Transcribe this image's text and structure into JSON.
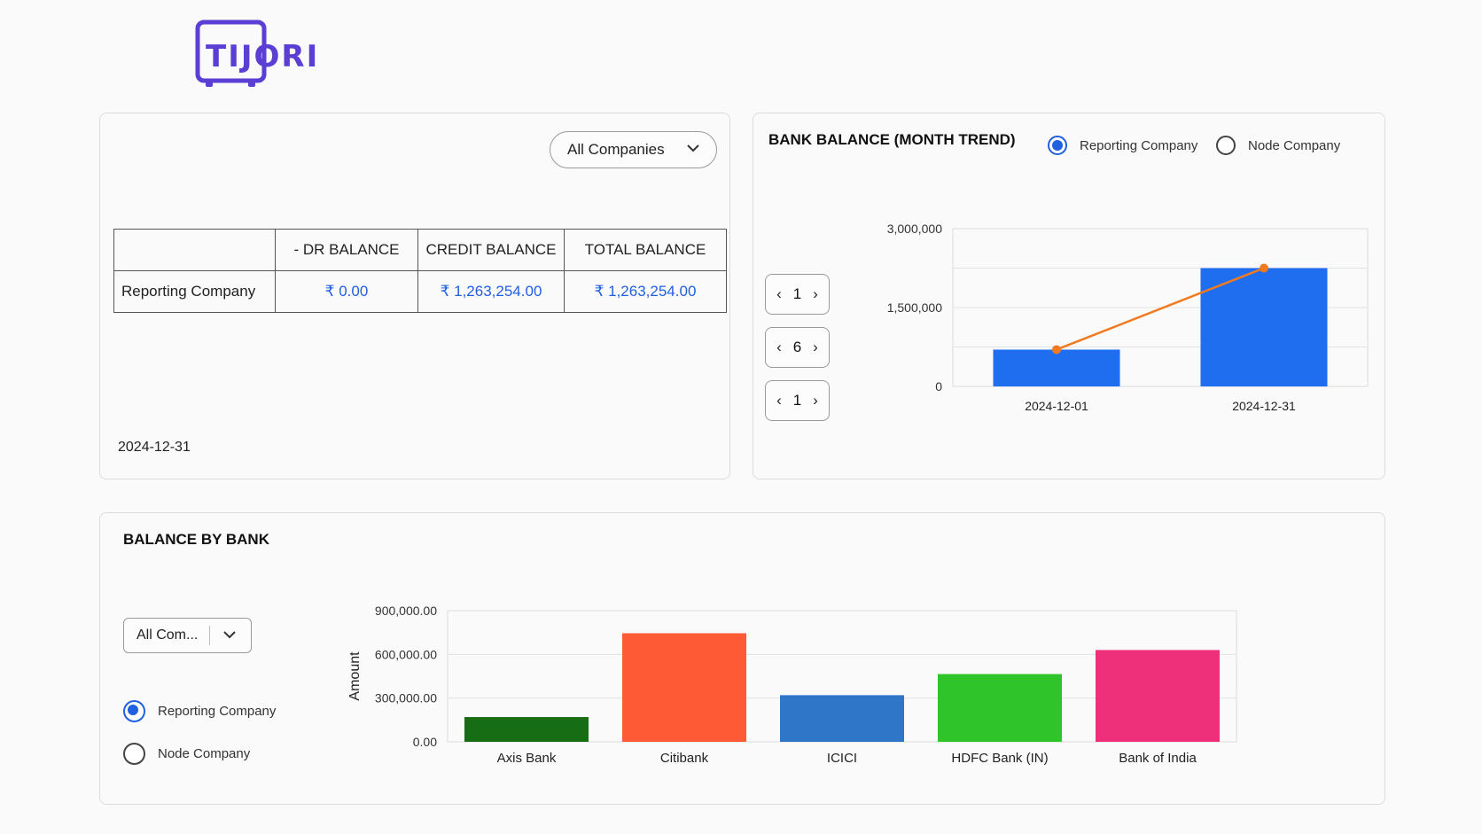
{
  "brand": {
    "logo_text": "TIJORI"
  },
  "summary": {
    "company_select": "All Companies",
    "columns": [
      "",
      "- DR BALANCE",
      "CREDIT BALANCE",
      "TOTAL BALANCE"
    ],
    "row_label": "Reporting Company",
    "dr_balance": "₹ 0.00",
    "credit_balance": "₹ 1,263,254.00",
    "total_balance": "₹ 1,263,254.00",
    "as_of_date": "2024-12-31"
  },
  "trend": {
    "title": "BANK BALANCE (MONTH TREND)",
    "radio_reporting": "Reporting Company",
    "radio_node": "Node Company",
    "selected": "Reporting Company",
    "pagers": [
      "1",
      "6",
      "1"
    ]
  },
  "bybank": {
    "title": "BALANCE BY BANK",
    "company_select": "All Com...",
    "radio_reporting": "Reporting Company",
    "radio_node": "Node Company",
    "selected": "Reporting Company"
  },
  "chart_data": [
    {
      "type": "bar",
      "title": "BANK BALANCE (MONTH TREND)",
      "categories": [
        "2024-12-01",
        "2024-12-31"
      ],
      "series": [
        {
          "values": [
            700000,
            2250000
          ],
          "color": "#1f6ef0"
        },
        {
          "type": "line",
          "values": [
            700000,
            2250000
          ],
          "color": "#f07a1f"
        }
      ],
      "ylim": [
        0,
        3000000
      ],
      "yticks": [
        "0",
        "1,500,000",
        "3,000,000"
      ],
      "grid": true
    },
    {
      "type": "bar",
      "title": "BALANCE BY BANK",
      "ylabel": "Amount",
      "categories": [
        "Axis Bank",
        "Citibank",
        "ICICI",
        "HDFC Bank (IN)",
        "Bank of India"
      ],
      "values": [
        170000,
        745000,
        320000,
        465000,
        630000
      ],
      "colors": [
        "#176d14",
        "#ff5a36",
        "#2f76c8",
        "#2ec42a",
        "#ee2f7a"
      ],
      "ylim": [
        0,
        900000
      ],
      "yticks": [
        "0.00",
        "300,000.00",
        "600,000.00",
        "900,000.00"
      ],
      "grid": true
    }
  ]
}
